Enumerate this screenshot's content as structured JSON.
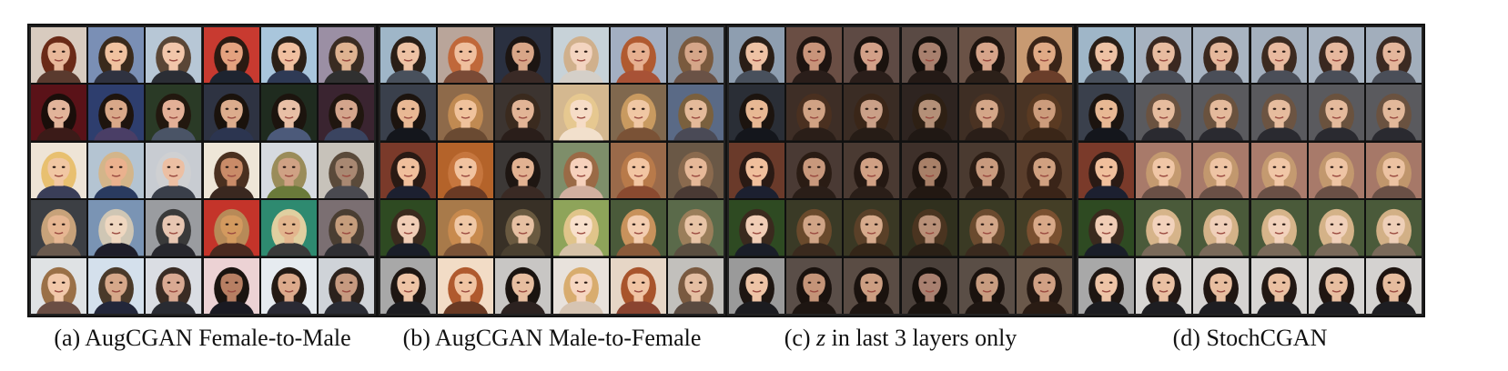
{
  "figure": {
    "panels": [
      {
        "label": "(a)",
        "caption": "AugCGAN Female-to-Male",
        "math": "",
        "rows": [
          {
            "bg": [
              "#d8cbbf",
              "#7a8fb5",
              "#b7c7d6",
              "#c83a30",
              "#a9c6dc",
              "#9b8fa4"
            ],
            "skin": [
              "#e8b89a",
              "#f0c2a0",
              "#f2c6aa",
              "#e4a27f",
              "#f0c0a0",
              "#dfb391"
            ],
            "hair": [
              "#6a2a17",
              "#3a2a1c",
              "#5a4636",
              "#2a1a12",
              "#2b2017",
              "#3a2c22"
            ],
            "cloth": [
              "#5a3a2e",
              "#2f3240",
              "#2b2e35",
              "#1e2430",
              "#2e3a55",
              "#303030"
            ]
          },
          {
            "bg": [
              "#5a1218",
              "#2e3e6e",
              "#2a3a26",
              "#2e3342",
              "#1f2b1f",
              "#3a2430"
            ],
            "skin": [
              "#e2b49a",
              "#d9a889",
              "#e3b097",
              "#dcac8d",
              "#e8bfa6",
              "#d4a58c"
            ],
            "hair": [
              "#1a0e0a",
              "#1e140e",
              "#22180f",
              "#1a120c",
              "#1c140e",
              "#20160f"
            ],
            "cloth": [
              "#3b1b18",
              "#4a3e66",
              "#4a5466",
              "#2c3550",
              "#4c5a7a",
              "#3a4460"
            ]
          },
          {
            "bg": [
              "#eee4d6",
              "#b4c4d2",
              "#c8ccd2",
              "#eee6d8",
              "#d6dae0",
              "#c7c2ba"
            ],
            "skin": [
              "#f1c7a3",
              "#eab18e",
              "#ecbfa3",
              "#c98b68",
              "#cfa184",
              "#a88872"
            ],
            "hair": [
              "#e8c070",
              "#d3b58a",
              "#cfd0d2",
              "#4a3020",
              "#9a8c5a",
              "#5a4a3a"
            ],
            "cloth": [
              "#3a3e58",
              "#2a3b60",
              "#3a3f4a",
              "#3a2820",
              "#6a7a3a",
              "#4a4a50"
            ]
          },
          {
            "bg": [
              "#3c3f44",
              "#7a94b4",
              "#9a9ca0",
              "#c4342a",
              "#2e8a70",
              "#7b6f72"
            ],
            "skin": [
              "#e6b692",
              "#efd7c0",
              "#e7c6b2",
              "#d39a5f",
              "#e3b68e",
              "#c59d7c"
            ],
            "hair": [
              "#c7a27a",
              "#cfc6b4",
              "#3a3a3a",
              "#b78a58",
              "#e0cfa0",
              "#4a3e32"
            ],
            "cloth": [
              "#6a5a4e",
              "#1e1e2a",
              "#27272d",
              "#4a2a20",
              "#3a3a3a",
              "#2e2e32"
            ]
          },
          {
            "bg": [
              "#dfe2e4",
              "#d4e0ec",
              "#dadde3",
              "#ecd2d4",
              "#e6ebf0",
              "#cfd3d8"
            ],
            "skin": [
              "#f1c8aa",
              "#d6a88a",
              "#d9a992",
              "#b77f63",
              "#dcaa8c",
              "#c69a80"
            ],
            "hair": [
              "#9a7047",
              "#4a3a2a",
              "#3a2c24",
              "#1a1410",
              "#241a14",
              "#2c221c"
            ],
            "cloth": [
              "#6a4e44",
              "#23273a",
              "#292b32",
              "#1a1a22",
              "#2a2a34",
              "#2a2c34"
            ]
          }
        ]
      },
      {
        "label": "(b)",
        "caption": "AugCGAN Male-to-Female",
        "math": "",
        "rows": [
          {
            "bg": [
              "#9fb6c8",
              "#b9a59a",
              "#2a3040",
              "#c7d2d8",
              "#a3afc2",
              "#8a96a6"
            ],
            "skin": [
              "#eec2a4",
              "#efbf9e",
              "#d8a688",
              "#f3d4c0",
              "#e6b090",
              "#d5a689"
            ],
            "hair": [
              "#2a1e16",
              "#c0683a",
              "#1c1512",
              "#d0b08c",
              "#b05a30",
              "#7a5a3e"
            ],
            "cloth": [
              "#48505c",
              "#7a4a36",
              "#3a2a26",
              "#d4cfc8",
              "#a85236",
              "#6a5246"
            ]
          },
          {
            "bg": [
              "#3a404c",
              "#8e6a4a",
              "#3c3430",
              "#d4b890",
              "#80684e",
              "#5a6a86"
            ],
            "skin": [
              "#e8b894",
              "#f0c29c",
              "#e2b496",
              "#f6dcc6",
              "#f0c7a4",
              "#e4ba9a"
            ],
            "hair": [
              "#1c140f",
              "#c08a52",
              "#3a2a1e",
              "#e6c890",
              "#c89a60",
              "#7a603e"
            ],
            "cloth": [
              "#14161c",
              "#6a4a32",
              "#2a1e1a",
              "#f2e0cc",
              "#7a5236",
              "#4a4a56"
            ]
          },
          {
            "bg": [
              "#7a3a2a",
              "#b4632a",
              "#3c3836",
              "#7e8e6a",
              "#9a6a4a",
              "#6a5846"
            ],
            "skin": [
              "#f0bf9c",
              "#f1c3a0",
              "#e2b292",
              "#f6d1bc",
              "#f2c5a2",
              "#e6b898"
            ],
            "hair": [
              "#2a1a14",
              "#c6763e",
              "#1e1612",
              "#9a6a46",
              "#b87a4a",
              "#8a6a4e"
            ],
            "cloth": [
              "#1c2030",
              "#6a3a24",
              "#3a2a24",
              "#d2b0a0",
              "#8a4a30",
              "#4a3a34"
            ]
          },
          {
            "bg": [
              "#2e4a22",
              "#a87a4a",
              "#383026",
              "#8ea45a",
              "#4a5a3a",
              "#5a6a4a"
            ],
            "skin": [
              "#f0cdb6",
              "#f0c8a6",
              "#e6c0a2",
              "#f8e0cc",
              "#f3cdb0",
              "#e8c4a6"
            ],
            "hair": [
              "#3a2a1e",
              "#c88a4e",
              "#6a5a40",
              "#e0c48a",
              "#c8925c",
              "#9a7e5a"
            ],
            "cloth": [
              "#1a1e28",
              "#7a5236",
              "#4a4030",
              "#d6c2a8",
              "#8a5a3a",
              "#5a4e40"
            ]
          },
          {
            "bg": [
              "#a8a8a8",
              "#f2dcc6",
              "#c8c6c4",
              "#e8e2dc",
              "#e6d6c6",
              "#c2c0bc"
            ],
            "skin": [
              "#eec4a6",
              "#f0c4a2",
              "#e6bea0",
              "#f6d6c0",
              "#f0c4a4",
              "#e4bea2"
            ],
            "hair": [
              "#1e1612",
              "#b05a2e",
              "#1a1410",
              "#d8ac6e",
              "#a8542c",
              "#7a5a40"
            ],
            "cloth": [
              "#1c1c20",
              "#6a3a24",
              "#2c2220",
              "#d6c4b2",
              "#8a4430",
              "#5a4a40"
            ]
          }
        ]
      },
      {
        "label": "(c)",
        "caption": " in last 3 layers only",
        "math": "z",
        "rows": [
          {
            "bg": [
              "#8e9eb0",
              "#6a4e44",
              "#5e4a44",
              "#5a4a44",
              "#6a5246",
              "#c89a72"
            ],
            "skin": [
              "#eec2a4",
              "#c8947a",
              "#d2a088",
              "#a8806e",
              "#d6a48a",
              "#e0aa86"
            ],
            "hair": [
              "#2a1e16",
              "#1e1410",
              "#1a120e",
              "#16100c",
              "#1e140f",
              "#3a2418"
            ],
            "cloth": [
              "#48505c",
              "#2a1e1a",
              "#2a1e1a",
              "#241a16",
              "#2c2019",
              "#6a3e2a"
            ]
          },
          {
            "bg": [
              "#2a2e36",
              "#3e2e26",
              "#3a2c24",
              "#2e2420",
              "#3e2e24",
              "#4a3424"
            ],
            "skin": [
              "#e8b894",
              "#d0a284",
              "#caa088",
              "#b49078",
              "#d4a688",
              "#cc9c7c"
            ],
            "hair": [
              "#1c140f",
              "#4a3020",
              "#3a2618",
              "#2e2014",
              "#4a3222",
              "#5a3a22"
            ],
            "cloth": [
              "#14161c",
              "#2a1e18",
              "#261c16",
              "#201814",
              "#2a1e18",
              "#3a2618"
            ]
          },
          {
            "bg": [
              "#6a3a2a",
              "#4a3a34",
              "#4a3a32",
              "#3e302a",
              "#4a3a30",
              "#5a3e2c"
            ],
            "skin": [
              "#f0bf9c",
              "#c8987c",
              "#d0a084",
              "#a88068",
              "#c89a7e",
              "#d0a080"
            ],
            "hair": [
              "#2a1a14",
              "#2a1c14",
              "#241812",
              "#1e140f",
              "#2a1c14",
              "#3a2418"
            ],
            "cloth": [
              "#1c2030",
              "#2a1e18",
              "#2a1e18",
              "#221812",
              "#2a1e18",
              "#3a2418"
            ]
          },
          {
            "bg": [
              "#2e4a22",
              "#3a3a26",
              "#3a3824",
              "#30301e",
              "#3a3a24",
              "#443e26"
            ],
            "skin": [
              "#f0cdb6",
              "#d0a486",
              "#d6aa8c",
              "#b89078",
              "#d2a688",
              "#d8a888"
            ],
            "hair": [
              "#3a2a1e",
              "#6a4a2c",
              "#5a4028",
              "#4a3420",
              "#6a4a2e",
              "#7a5030"
            ],
            "cloth": [
              "#1a1e28",
              "#3a2a1e",
              "#342618",
              "#2a2016",
              "#3a2a1e",
              "#4a3020"
            ]
          },
          {
            "bg": [
              "#9a9a9a",
              "#5a4e48",
              "#5a4c44",
              "#4a403a",
              "#5a4e46",
              "#6a584a"
            ],
            "skin": [
              "#eec4a6",
              "#c49478",
              "#cc9e82",
              "#a88070",
              "#c89c80",
              "#d0a084"
            ],
            "hair": [
              "#1e1612",
              "#1a120e",
              "#1a120e",
              "#150f0b",
              "#1a120e",
              "#241812"
            ],
            "cloth": [
              "#1c1c20",
              "#1e1612",
              "#1e1612",
              "#1a1410",
              "#1e1612",
              "#2a1c14"
            ]
          }
        ]
      },
      {
        "label": "(d)",
        "caption": "StochCGAN",
        "math": "",
        "rows": [
          {
            "bg": [
              "#9fb6c8",
              "#a6b2c0",
              "#a8b4c2",
              "#a4b0be",
              "#a8b4c2",
              "#a2aebc"
            ],
            "skin": [
              "#eec2a4",
              "#e8bca0",
              "#e6b89c",
              "#e8baa0",
              "#e6b89e",
              "#e4b69c"
            ],
            "hair": [
              "#2a1e16",
              "#3a2820",
              "#3a281e",
              "#3c2a20",
              "#3a2820",
              "#3c2a22"
            ],
            "cloth": [
              "#48505c",
              "#4a4e58",
              "#4a4e58",
              "#4a4e58",
              "#4a4e58",
              "#4a4e58"
            ]
          },
          {
            "bg": [
              "#3a404c",
              "#5a5a5e",
              "#5a5a5e",
              "#5a5a5e",
              "#5a5a5e",
              "#5a5a5e"
            ],
            "skin": [
              "#e8b894",
              "#e6bc9e",
              "#e4ba9c",
              "#e6bc9e",
              "#e4ba9c",
              "#e2b89a"
            ],
            "hair": [
              "#1c140f",
              "#6a5240",
              "#6a523e",
              "#6c5442",
              "#6a523e",
              "#6a5240"
            ],
            "cloth": [
              "#14161c",
              "#2a2a30",
              "#2a2a30",
              "#2a2a30",
              "#2a2a30",
              "#2a2a30"
            ]
          },
          {
            "bg": [
              "#7a3a2a",
              "#a87a6a",
              "#a87a6a",
              "#aa7c6c",
              "#a87a6a",
              "#a67868"
            ],
            "skin": [
              "#f0bf9c",
              "#f0c6a6",
              "#eec4a4",
              "#f0c6a6",
              "#eec4a4",
              "#ecc2a2"
            ],
            "hair": [
              "#2a1a14",
              "#c49a70",
              "#c2986e",
              "#c49a70",
              "#c2986e",
              "#c0966c"
            ],
            "cloth": [
              "#1c2030",
              "#6a5046",
              "#6a5046",
              "#6a5046",
              "#6a5046",
              "#6a5046"
            ]
          },
          {
            "bg": [
              "#2e4a22",
              "#4a5a3a",
              "#4a5a3a",
              "#4a5a3a",
              "#4a5a3a",
              "#4a5a3a"
            ],
            "skin": [
              "#f0cdb6",
              "#f2d2bc",
              "#f0d0ba",
              "#f2d2bc",
              "#f0d0ba",
              "#eecfb8"
            ],
            "hair": [
              "#3a2a1e",
              "#d6b48a",
              "#d4b288",
              "#d6b48a",
              "#d4b288",
              "#d2b086"
            ],
            "cloth": [
              "#1a1e28",
              "#7a6a5a",
              "#7a6a5a",
              "#7a6a5a",
              "#7a6a5a",
              "#7a6a5a"
            ]
          },
          {
            "bg": [
              "#a8a8a8",
              "#d8d6d4",
              "#d6d4d2",
              "#d8d6d4",
              "#d6d4d2",
              "#d4d2d0"
            ],
            "skin": [
              "#eec4a6",
              "#eac0a2",
              "#e8bea0",
              "#eac0a2",
              "#e8bea0",
              "#e6bc9e"
            ],
            "hair": [
              "#1e1612",
              "#221814",
              "#201612",
              "#221814",
              "#201612",
              "#1e1410"
            ],
            "cloth": [
              "#1c1c20",
              "#1e1e22",
              "#1e1e22",
              "#1e1e22",
              "#1e1e22",
              "#1e1e22"
            ]
          }
        ]
      }
    ]
  }
}
